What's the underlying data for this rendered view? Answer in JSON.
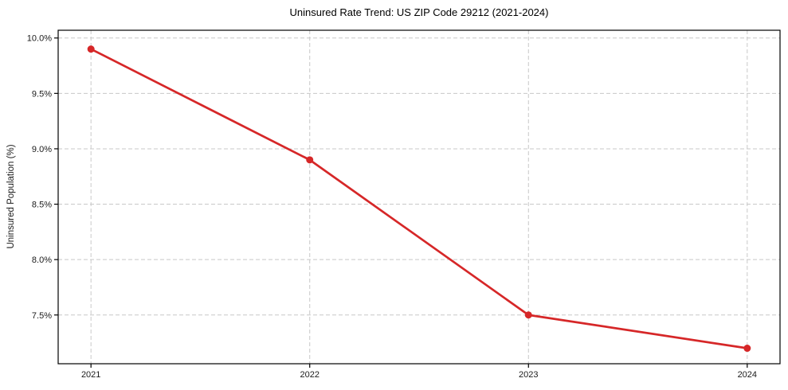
{
  "chart_data": {
    "type": "line",
    "title": "Uninsured Rate Trend: US ZIP Code 29212 (2021-2024)",
    "xlabel": "",
    "ylabel": "Uninsured Population (%)",
    "x": [
      2021,
      2022,
      2023,
      2024
    ],
    "values": [
      9.9,
      8.9,
      7.5,
      7.2
    ],
    "xticks": [
      {
        "value": 2021,
        "label": "2021"
      },
      {
        "value": 2022,
        "label": "2022"
      },
      {
        "value": 2023,
        "label": "2023"
      },
      {
        "value": 2024,
        "label": "2024"
      }
    ],
    "yticks": [
      {
        "value": 7.5,
        "label": "7.5%"
      },
      {
        "value": 8.0,
        "label": "8.0%"
      },
      {
        "value": 8.5,
        "label": "8.5%"
      },
      {
        "value": 9.0,
        "label": "9.0%"
      },
      {
        "value": 9.5,
        "label": "9.5%"
      },
      {
        "value": 10.0,
        "label": "10.0%"
      }
    ],
    "xlim": [
      2020.85,
      2024.15
    ],
    "ylim": [
      7.06,
      10.07
    ],
    "grid": "on",
    "grid_style": "dashed",
    "legend": "none",
    "marker": "circle",
    "marker_radius": 4.5,
    "line_color": "#d62728",
    "grid_color": "#c8c8c8",
    "axis_color": "#000000",
    "tick_text_color": "#1a1a1a",
    "background_color": "#ffffff"
  }
}
